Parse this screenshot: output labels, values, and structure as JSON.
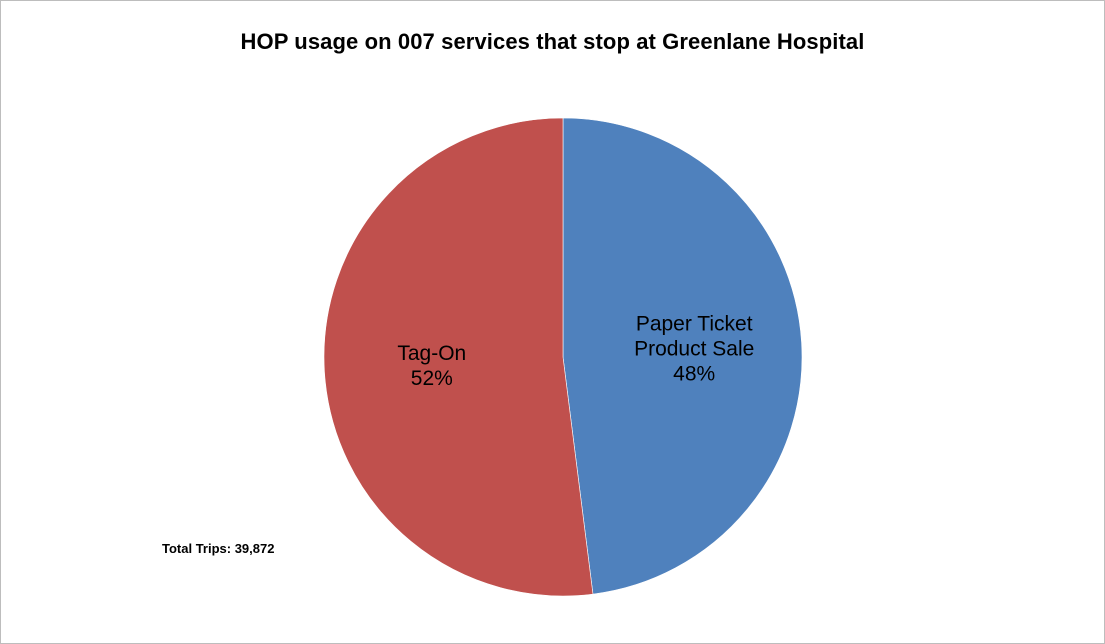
{
  "chart_data": {
    "type": "pie",
    "title": "HOP usage on 007 services that stop at Greenlane Hospital",
    "slices": [
      {
        "label_lines": [
          "Paper Ticket",
          "Product Sale"
        ],
        "percent_label": "48%",
        "value": 48,
        "color": "#4f81bd"
      },
      {
        "label_lines": [
          "Tag-On"
        ],
        "percent_label": "52%",
        "value": 52,
        "color": "#c0504d"
      }
    ],
    "start_angle_deg": 0,
    "direction": "clockwise",
    "annotation": "Total Trips: 39,872"
  }
}
